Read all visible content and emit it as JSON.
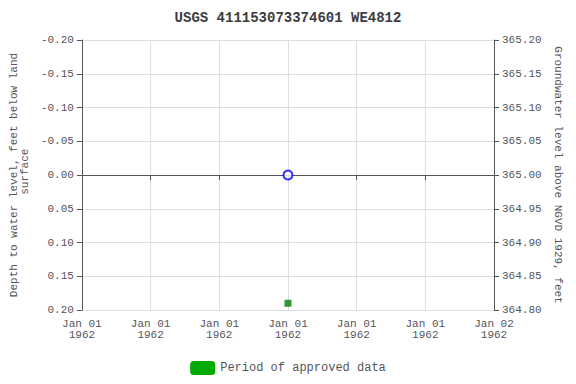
{
  "chart_data": {
    "type": "scatter",
    "title": "USGS 411153073374601 WE4812",
    "x_label": null,
    "y_label": "Depth to water level, feet below land\n surface",
    "y2_label": "Groundwater level above NGVD 1929, feet",
    "categories": [
      "Jan 01\n1962",
      "Jan 01\n1962",
      "Jan 01\n1962",
      "Jan 01\n1962",
      "Jan 01\n1962",
      "Jan 01\n1962",
      "Jan 02\n1962"
    ],
    "series": [
      {
        "type": "scatter",
        "color": "blue",
        "marker": "open circle",
        "values": [
          null,
          null,
          null,
          0.0,
          null,
          null,
          null
        ]
      },
      {
        "type": "scatter",
        "color": "green",
        "marker": "square",
        "values": [
          null,
          null,
          null,
          0.19,
          null,
          null,
          null
        ]
      },
      {
        "type": "bar",
        "name": "Period of approved data",
        "color": "#00aa00",
        "values": [
          null,
          null,
          null,
          null,
          null,
          null,
          null
        ]
      }
    ],
    "ylim": [
      -0.2,
      0.2
    ],
    "yticks": [
      {
        "value": -0.2,
        "label": "-0.20"
      },
      {
        "value": -0.15,
        "label": "-0.15"
      },
      {
        "value": -0.1,
        "label": "-0.10"
      },
      {
        "value": -0.05,
        "label": "-0.05"
      },
      {
        "value": 0.0,
        "label": "0.00"
      },
      {
        "value": 0.05,
        "label": "0.05"
      },
      {
        "value": 0.1,
        "label": "0.10"
      },
      {
        "value": 0.15,
        "label": "0.15"
      },
      {
        "value": 0.2,
        "label": "0.20"
      }
    ],
    "y_inverted": true,
    "y2lim": [
      364.8,
      365.2
    ],
    "y2ticks": [
      {
        "value": 364.8,
        "label": "364.80"
      },
      {
        "value": 364.85,
        "label": "364.85"
      },
      {
        "value": 364.9,
        "label": "364.90"
      },
      {
        "value": 364.95,
        "label": "364.95"
      },
      {
        "value": 365.0,
        "label": "365.00"
      },
      {
        "value": 365.05,
        "label": "365.05"
      },
      {
        "value": 365.1,
        "label": "365.10"
      },
      {
        "value": 365.15,
        "label": "365.15"
      },
      {
        "value": 365.2,
        "label": "365.20"
      }
    ],
    "grid": true,
    "legend": "bottom"
  }
}
